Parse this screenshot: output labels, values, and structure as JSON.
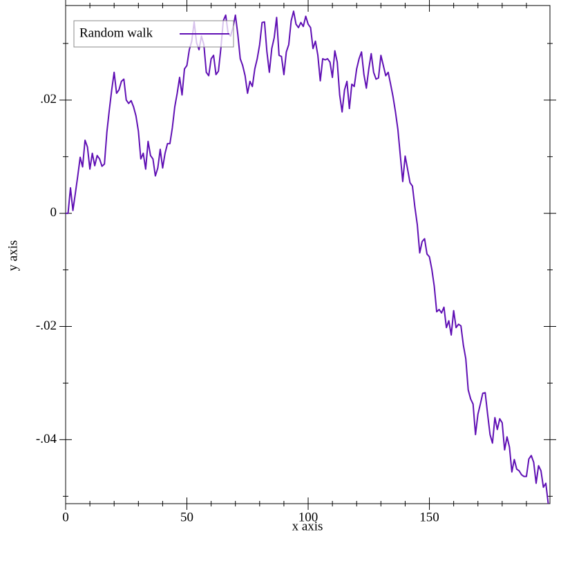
{
  "chart_data": {
    "type": "line",
    "xlabel": "x axis",
    "ylabel": "y axis",
    "legend": "top-left",
    "series": [
      {
        "name": "Random walk",
        "color": "#5f0fb4",
        "x": [
          0,
          1,
          2,
          3,
          4,
          5,
          6,
          7,
          8,
          9,
          10,
          11,
          12,
          13,
          14,
          15,
          16,
          17,
          18,
          19,
          20,
          21,
          22,
          23,
          24,
          25,
          26,
          27,
          28,
          29,
          30,
          31,
          32,
          33,
          34,
          35,
          36,
          37,
          38,
          39,
          40,
          41,
          42,
          43,
          44,
          45,
          46,
          47,
          48,
          49,
          50,
          51,
          52,
          53,
          54,
          55,
          56,
          57,
          58,
          59,
          60,
          61,
          62,
          63,
          64,
          65,
          66,
          67,
          68,
          69,
          70,
          71,
          72,
          73,
          74,
          75,
          76,
          77,
          78,
          79,
          80,
          81,
          82,
          83,
          84,
          85,
          86,
          87,
          88,
          89,
          90,
          91,
          92,
          93,
          94,
          95,
          96,
          97,
          98,
          99,
          100,
          101,
          102,
          103,
          104,
          105,
          106,
          107,
          108,
          109,
          110,
          111,
          112,
          113,
          114,
          115,
          116,
          117,
          118,
          119,
          120,
          121,
          122,
          123,
          124,
          125,
          126,
          127,
          128,
          129,
          130,
          131,
          132,
          133,
          134,
          135,
          136,
          137,
          138,
          139,
          140,
          141,
          142,
          143,
          144,
          145,
          146,
          147,
          148,
          149,
          150,
          151,
          152,
          153,
          154,
          155,
          156,
          157,
          158,
          159,
          160,
          161,
          162,
          163,
          164,
          165,
          166,
          167,
          168,
          169,
          170,
          171,
          172,
          173,
          174,
          175,
          176,
          177,
          178,
          179,
          180,
          181,
          182,
          183,
          184,
          185,
          186,
          187,
          188,
          189,
          190,
          191,
          192,
          193,
          194,
          195,
          196,
          197,
          198,
          199
        ],
        "values": [
          0,
          0,
          0.0045,
          0.0005,
          0.0035,
          0.0066,
          0.0099,
          0.0082,
          0.0129,
          0.0117,
          0.0078,
          0.0106,
          0.0084,
          0.0102,
          0.0096,
          0.0083,
          0.0087,
          0.0143,
          0.0182,
          0.0218,
          0.0249,
          0.0212,
          0.0218,
          0.0233,
          0.0237,
          0.02,
          0.0194,
          0.0199,
          0.0188,
          0.0172,
          0.0145,
          0.0096,
          0.0106,
          0.0078,
          0.0127,
          0.0102,
          0.0096,
          0.0066,
          0.008,
          0.0113,
          0.008,
          0.0106,
          0.0123,
          0.0123,
          0.0151,
          0.0188,
          0.0212,
          0.024,
          0.0209,
          0.0255,
          0.0261,
          0.0289,
          0.0304,
          0.0338,
          0.0301,
          0.0289,
          0.0313,
          0.0298,
          0.0249,
          0.0243,
          0.0273,
          0.0279,
          0.0245,
          0.0251,
          0.0291,
          0.034,
          0.035,
          0.0318,
          0.0313,
          0.0328,
          0.035,
          0.0316,
          0.0273,
          0.0261,
          0.0243,
          0.0212,
          0.0233,
          0.0224,
          0.0255,
          0.0273,
          0.0298,
          0.0337,
          0.0338,
          0.0285,
          0.0249,
          0.0291,
          0.031,
          0.0346,
          0.0279,
          0.0277,
          0.0245,
          0.0285,
          0.0298,
          0.034,
          0.0357,
          0.0334,
          0.0328,
          0.0337,
          0.033,
          0.0348,
          0.0334,
          0.0328,
          0.0291,
          0.0304,
          0.0279,
          0.0234,
          0.0273,
          0.0271,
          0.0273,
          0.0267,
          0.024,
          0.0287,
          0.0267,
          0.0209,
          0.0179,
          0.0218,
          0.0233,
          0.0185,
          0.0228,
          0.0224,
          0.0255,
          0.0273,
          0.0285,
          0.0245,
          0.0221,
          0.0255,
          0.0282,
          0.0249,
          0.0237,
          0.0239,
          0.0279,
          0.0261,
          0.0243,
          0.0249,
          0.0228,
          0.0206,
          0.0179,
          0.0148,
          0.0102,
          0.0056,
          0.0101,
          0.0078,
          0.0054,
          0.0048,
          0.0011,
          -0.002,
          -0.007,
          -0.005,
          -0.0045,
          -0.0072,
          -0.0077,
          -0.0099,
          -0.0129,
          -0.0174,
          -0.017,
          -0.0176,
          -0.0166,
          -0.0202,
          -0.019,
          -0.0215,
          -0.0172,
          -0.0202,
          -0.0196,
          -0.0199,
          -0.0233,
          -0.0257,
          -0.0312,
          -0.0328,
          -0.0337,
          -0.0391,
          -0.0355,
          -0.0337,
          -0.0318,
          -0.0317,
          -0.0355,
          -0.0391,
          -0.0406,
          -0.0361,
          -0.0382,
          -0.0363,
          -0.037,
          -0.0418,
          -0.0395,
          -0.0413,
          -0.0457,
          -0.0435,
          -0.0452,
          -0.0455,
          -0.0462,
          -0.0465,
          -0.0465,
          -0.0434,
          -0.0428,
          -0.044,
          -0.0477,
          -0.0446,
          -0.0455,
          -0.0484,
          -0.0477,
          -0.0513
        ]
      }
    ],
    "xlim": [
      0,
      199.7
    ],
    "ylim": [
      -0.0513,
      0.0367
    ],
    "xticks": [
      0,
      50,
      100,
      150
    ],
    "xminorticks": [
      10,
      20,
      30,
      40,
      60,
      70,
      80,
      90,
      110,
      120,
      130,
      140,
      160,
      170,
      180,
      190
    ],
    "yticks": [
      {
        "value": -0.04,
        "label": "-.04"
      },
      {
        "value": -0.02,
        "label": "-.02"
      },
      0,
      {
        "value": 0.02,
        "label": ".02"
      }
    ],
    "yminorticks": [
      -0.05,
      -0.03,
      -0.01,
      0.01,
      0.03
    ]
  }
}
